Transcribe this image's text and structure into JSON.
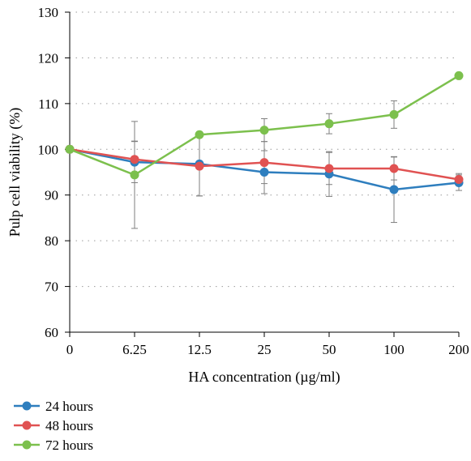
{
  "chart_data": {
    "type": "line",
    "title": "",
    "xlabel": "HA concentration (µg/ml)",
    "ylabel": "Pulp cell viability (%)",
    "categories": [
      "0",
      "6.25",
      "12.5",
      "25",
      "50",
      "100",
      "200"
    ],
    "ylim": [
      60,
      130
    ],
    "yticks": [
      60,
      70,
      80,
      90,
      100,
      110,
      120,
      130
    ],
    "grid": "horizontal dotted",
    "legend_position": "bottom-left",
    "series": [
      {
        "name": "24 hours",
        "color": "#2e7ebe",
        "values": [
          100,
          97.2,
          96.8,
          95.0,
          94.6,
          91.2,
          92.7
        ],
        "errors": [
          0,
          4.5,
          7.0,
          4.7,
          4.9,
          7.2,
          1.7
        ]
      },
      {
        "name": "48 hours",
        "color": "#e05252",
        "values": [
          100,
          97.8,
          96.3,
          97.1,
          95.8,
          95.8,
          93.4
        ],
        "errors": [
          0,
          4.0,
          6.5,
          4.6,
          3.5,
          2.5,
          1.3
        ]
      },
      {
        "name": "72 hours",
        "color": "#7cc04d",
        "values": [
          100,
          94.4,
          103.2,
          104.2,
          105.6,
          107.6,
          116.1
        ],
        "errors": [
          0,
          11.7,
          0,
          2.5,
          2.2,
          3.0,
          0
        ]
      }
    ]
  }
}
